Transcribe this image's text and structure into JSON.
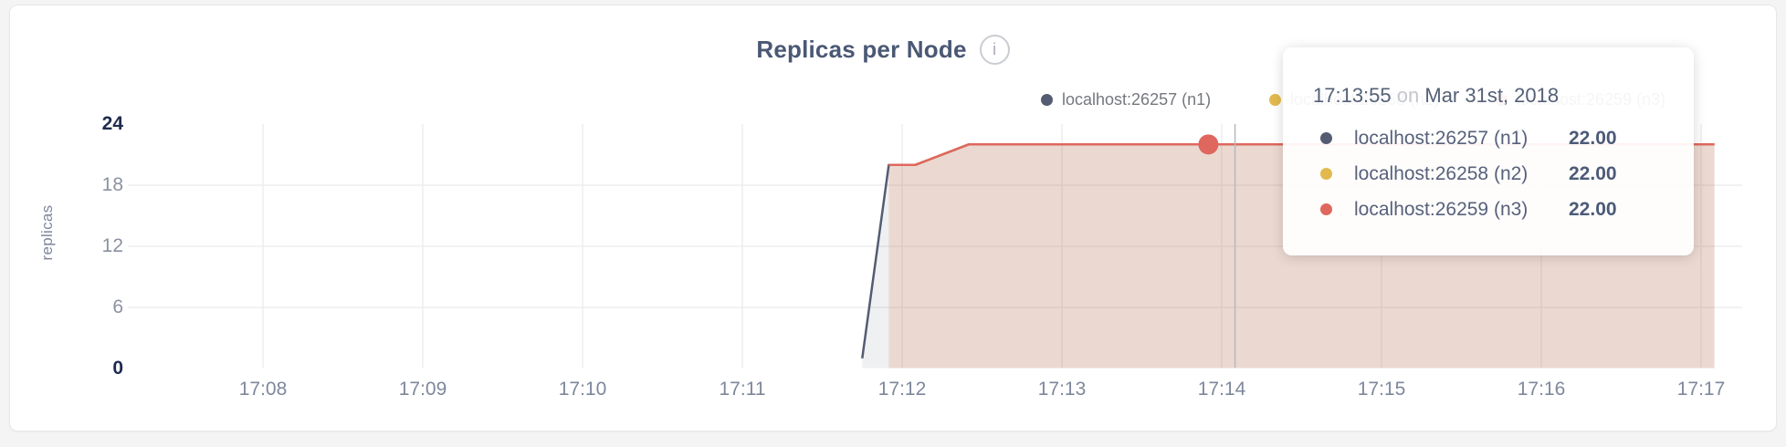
{
  "chart": {
    "title": "Replicas per Node",
    "info_glyph": "i",
    "ylabel": "replicas",
    "y_ticks": [
      {
        "label": "24",
        "value": 24,
        "emphasis": true,
        "grid": false
      },
      {
        "label": "18",
        "value": 18,
        "emphasis": false,
        "grid": true
      },
      {
        "label": "12",
        "value": 12,
        "emphasis": false,
        "grid": true
      },
      {
        "label": "6",
        "value": 6,
        "emphasis": false,
        "grid": true
      },
      {
        "label": "0",
        "value": 0,
        "emphasis": true,
        "grid": false
      }
    ],
    "x_ticks": [
      "17:08",
      "17:09",
      "17:10",
      "17:11",
      "17:12",
      "17:13",
      "17:14",
      "17:15",
      "17:16",
      "17:17"
    ]
  },
  "chart_data": {
    "type": "area",
    "title": "Replicas per Node",
    "xlabel": "",
    "ylabel": "replicas",
    "ylim": [
      0,
      24
    ],
    "x_range": [
      "17:08:00",
      "17:17:05"
    ],
    "grid": true,
    "legend_position": "top-right",
    "series": [
      {
        "name": "localhost:26257 (n1)",
        "color": "#535c72",
        "fill": "rgba(82,91,110,0.09)",
        "points": [
          [
            "17:11:45",
            1
          ],
          [
            "17:11:55",
            20
          ],
          [
            "17:12:05",
            20
          ],
          [
            "17:12:25",
            22
          ],
          [
            "17:17:05",
            22
          ]
        ]
      },
      {
        "name": "localhost:26258 (n2)",
        "color": "#e2b94e",
        "fill": "rgba(226,185,78,0.09)",
        "points": [
          [
            "17:11:55",
            20
          ],
          [
            "17:12:05",
            20
          ],
          [
            "17:12:25",
            22
          ],
          [
            "17:17:05",
            22
          ]
        ]
      },
      {
        "name": "localhost:26259 (n3)",
        "color": "#df675e",
        "fill": "rgba(223,103,94,0.13)",
        "points": [
          [
            "17:11:55",
            20
          ],
          [
            "17:12:05",
            20
          ],
          [
            "17:12:25",
            22
          ],
          [
            "17:17:05",
            22
          ]
        ]
      }
    ],
    "hover": {
      "point_time": "17:13:55",
      "point_series": "localhost:26259 (n3)",
      "point_value": 22,
      "guideline_time": "17:14:05"
    }
  },
  "legend": {
    "items": [
      {
        "label": "localhost:26257 (n1)",
        "color": "#535c72"
      },
      {
        "label": "localhost:26258 (n2)",
        "color": "#e2b94e"
      },
      {
        "label": "localhost:26259 (n3)",
        "color": "#df675e"
      }
    ]
  },
  "tooltip": {
    "time": "17:13:55",
    "conjunction": "on",
    "date": "Mar 31st, 2018",
    "rows": [
      {
        "label": "localhost:26257 (n1)",
        "value": "22.00",
        "color": "#535c72"
      },
      {
        "label": "localhost:26258 (n2)",
        "value": "22.00",
        "color": "#e2b94e"
      },
      {
        "label": "localhost:26259 (n3)",
        "value": "22.00",
        "color": "#df675e"
      }
    ]
  }
}
